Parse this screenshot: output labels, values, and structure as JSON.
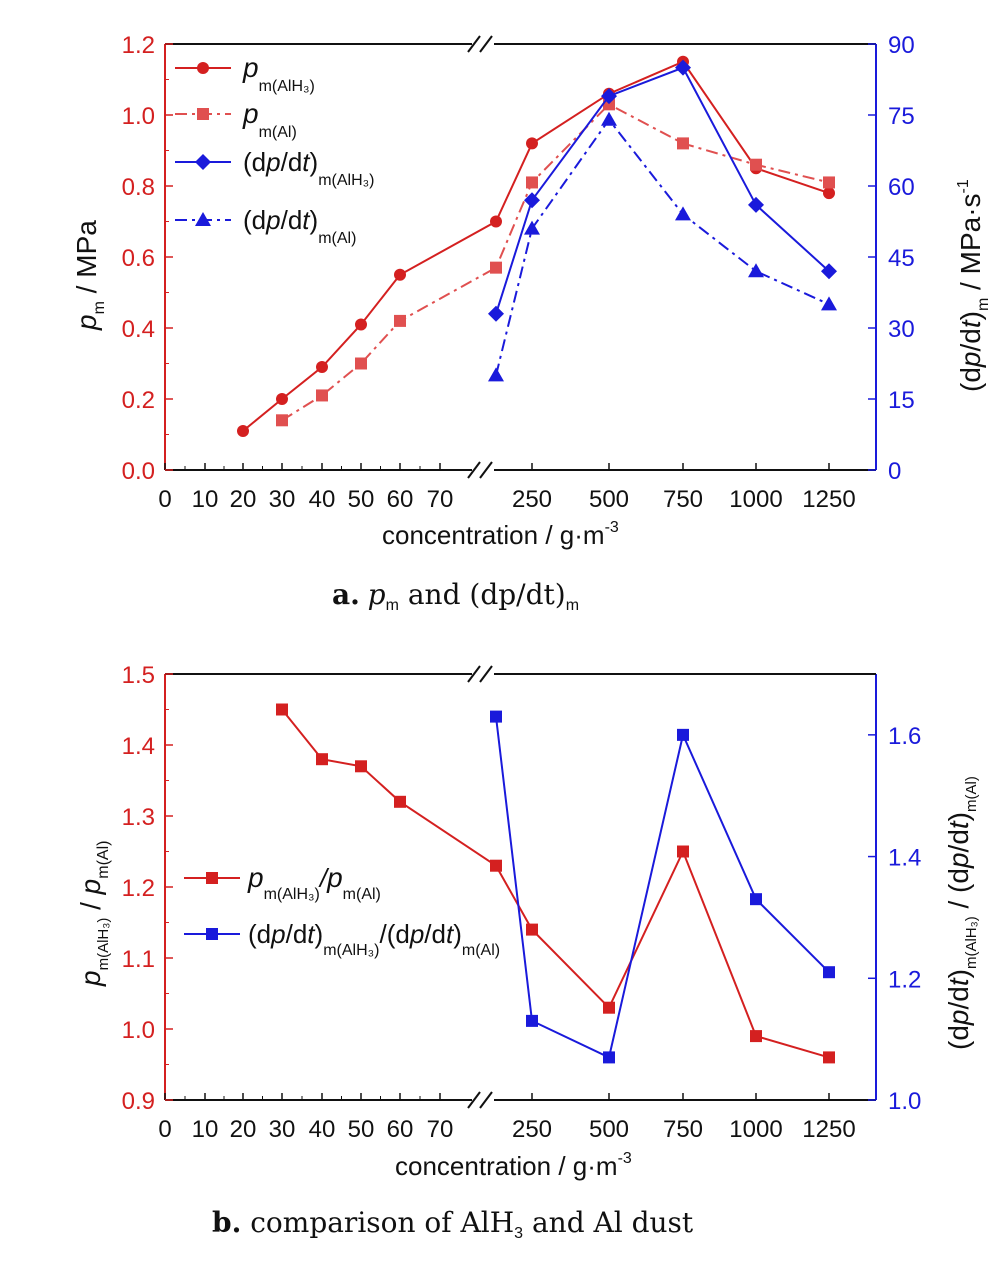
{
  "chart_data": [
    {
      "type": "line",
      "caption": {
        "label": "a.",
        "text_p": "p",
        "text_sub": "m",
        "text_and": "and",
        "text_dp": "(dp/dt)",
        "text_sub2": "m"
      },
      "xlabel": "concentration / g·m",
      "xlabel_sup": "-3",
      "x_tick_labels": [
        "0",
        "10",
        "20",
        "30",
        "40",
        "50",
        "60",
        "70",
        "250",
        "500",
        "750",
        "1000",
        "1250"
      ],
      "x_break": true,
      "ylabel_left": {
        "p": "p",
        "sub": "m",
        "rest": " / MPa"
      },
      "ylabel_right": {
        "pre": "(d",
        "p": "p",
        "mid": "/d",
        "t": "t",
        "post": ")",
        "sub": "m",
        "rest": " / MPa·s",
        "sup": "-1"
      },
      "ylim_left": [
        0,
        1.2
      ],
      "yticks_left": [
        "0.0",
        "0.2",
        "0.4",
        "0.6",
        "0.8",
        "1.0",
        "1.2"
      ],
      "ylim_right": [
        0,
        90
      ],
      "yticks_right": [
        "0",
        "15",
        "30",
        "45",
        "60",
        "75",
        "90"
      ],
      "legend_position": "top-left",
      "series": [
        {
          "legend": "p",
          "legend_sub": "m(AlH₃)",
          "axis": "left",
          "color": "#d42020",
          "marker": "circle",
          "dash": "solid",
          "x": [
            "20",
            "30",
            "40",
            "50",
            "60",
            "125",
            "250",
            "500",
            "750",
            "1000",
            "1250"
          ],
          "values": [
            0.11,
            0.2,
            0.29,
            0.41,
            0.55,
            0.7,
            0.92,
            1.06,
            1.15,
            0.85,
            0.78
          ]
        },
        {
          "legend": "p",
          "legend_sub": "m(Al)",
          "axis": "left",
          "color": "#e05050",
          "marker": "square",
          "dash": "dashdot",
          "x": [
            "30",
            "40",
            "50",
            "60",
            "125",
            "250",
            "500",
            "750",
            "1000",
            "1250"
          ],
          "values": [
            0.14,
            0.21,
            0.3,
            0.42,
            0.57,
            0.81,
            1.03,
            0.92,
            0.86,
            0.81
          ]
        },
        {
          "legend": "(dp/dt)",
          "legend_sub": "m(AlH₃)",
          "axis": "right",
          "color": "#1a1adb",
          "marker": "diamond",
          "dash": "solid",
          "x": [
            "125",
            "250",
            "500",
            "750",
            "1000",
            "1250"
          ],
          "values": [
            33,
            57,
            79,
            85,
            56,
            42
          ]
        },
        {
          "legend": "(dp/dt)",
          "legend_sub": "m(Al)",
          "axis": "right",
          "color": "#1a1adb",
          "marker": "triangle",
          "dash": "dashdot",
          "x": [
            "125",
            "250",
            "500",
            "750",
            "1000",
            "1250"
          ],
          "values": [
            20,
            51,
            74,
            54,
            42,
            35
          ]
        }
      ]
    },
    {
      "type": "line",
      "caption": {
        "label": "b.",
        "text": "comparison of AlH",
        "text_sub": "3",
        "text_end": "and Al dust"
      },
      "xlabel": "concentration / g·m",
      "xlabel_sup": "-3",
      "x_tick_labels": [
        "0",
        "10",
        "20",
        "30",
        "40",
        "50",
        "60",
        "70",
        "250",
        "500",
        "750",
        "1000",
        "1250"
      ],
      "x_break": true,
      "ylabel_left": {
        "p1": "p",
        "sub1": "m(AlH₃)",
        "slash": " / ",
        "p2": "p",
        "sub2": "m(Al)"
      },
      "ylabel_right": {
        "a": "(dp/dt)",
        "sub1": "m(AlH₃)",
        "slash": " / ",
        "b": "(dp/dt)",
        "sub2": "m(Al)"
      },
      "ylim_left": [
        0.9,
        1.5
      ],
      "yticks_left": [
        "0.9",
        "1.0",
        "1.1",
        "1.2",
        "1.3",
        "1.4",
        "1.5"
      ],
      "ylim_right": [
        1.0,
        1.7
      ],
      "yticks_right": [
        "1.0",
        "1.2",
        "1.4",
        "1.6"
      ],
      "legend_position": "middle-left",
      "series": [
        {
          "legend": "p",
          "legend_sub": "m(AlH₃)",
          "legend_mid": "/p",
          "legend_sub2": "m(Al)",
          "axis": "left",
          "color": "#d42020",
          "marker": "square",
          "dash": "solid",
          "x": [
            "30",
            "40",
            "50",
            "60",
            "125",
            "250",
            "500",
            "750",
            "1000",
            "1250"
          ],
          "values": [
            1.45,
            1.38,
            1.37,
            1.32,
            1.23,
            1.14,
            1.03,
            1.25,
            0.99,
            0.96
          ]
        },
        {
          "legend": "(dp/dt)",
          "legend_sub": "m(AlH₃)",
          "legend_mid": "/(dp/dt)",
          "legend_sub2": "m(Al)",
          "axis": "right",
          "color": "#1a1adb",
          "marker": "square",
          "dash": "solid",
          "x": [
            "125",
            "250",
            "500",
            "750",
            "1000",
            "1250"
          ],
          "values": [
            1.63,
            1.13,
            1.07,
            1.6,
            1.33,
            1.21
          ]
        }
      ]
    }
  ]
}
